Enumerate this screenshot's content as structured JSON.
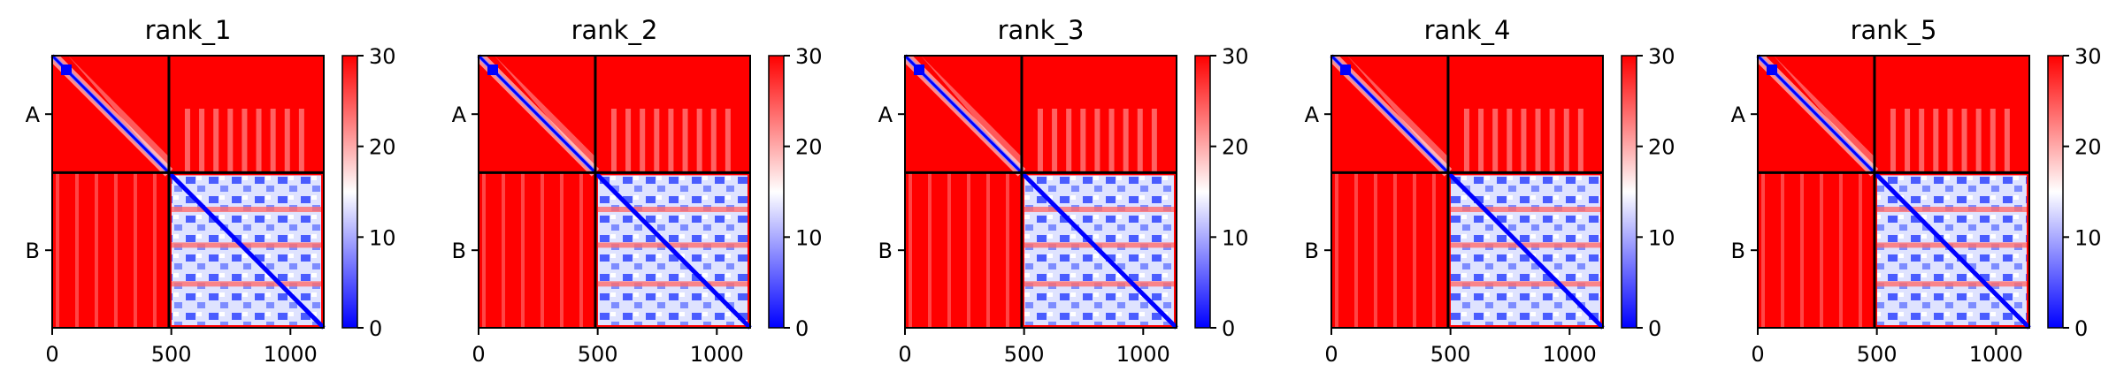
{
  "chart_data": [
    {
      "type": "heatmap",
      "title": "rank_1",
      "x_ticks": [
        0,
        500,
        1000
      ],
      "xlim": [
        0,
        1140
      ],
      "y_tick_labels": [
        "A",
        "B"
      ],
      "chain_boundary": 490,
      "colorbar": {
        "min": 0,
        "max": 30,
        "ticks": [
          0,
          10,
          20,
          30
        ],
        "colormap": "bwr"
      }
    },
    {
      "type": "heatmap",
      "title": "rank_2",
      "x_ticks": [
        0,
        500,
        1000
      ],
      "xlim": [
        0,
        1140
      ],
      "y_tick_labels": [
        "A",
        "B"
      ],
      "chain_boundary": 490,
      "colorbar": {
        "min": 0,
        "max": 30,
        "ticks": [
          0,
          10,
          20,
          30
        ],
        "colormap": "bwr"
      }
    },
    {
      "type": "heatmap",
      "title": "rank_3",
      "x_ticks": [
        0,
        500,
        1000
      ],
      "xlim": [
        0,
        1140
      ],
      "y_tick_labels": [
        "A",
        "B"
      ],
      "chain_boundary": 490,
      "colorbar": {
        "min": 0,
        "max": 30,
        "ticks": [
          0,
          10,
          20,
          30
        ],
        "colormap": "bwr"
      }
    },
    {
      "type": "heatmap",
      "title": "rank_4",
      "x_ticks": [
        0,
        500,
        1000
      ],
      "xlim": [
        0,
        1140
      ],
      "y_tick_labels": [
        "A",
        "B"
      ],
      "chain_boundary": 490,
      "colorbar": {
        "min": 0,
        "max": 30,
        "ticks": [
          0,
          10,
          20,
          30
        ],
        "colormap": "bwr"
      }
    },
    {
      "type": "heatmap",
      "title": "rank_5",
      "x_ticks": [
        0,
        500,
        1000
      ],
      "xlim": [
        0,
        1140
      ],
      "y_tick_labels": [
        "A",
        "B"
      ],
      "chain_boundary": 490,
      "colorbar": {
        "min": 0,
        "max": 30,
        "ticks": [
          0,
          10,
          20,
          30
        ],
        "colormap": "bwr"
      }
    }
  ],
  "colors": {
    "high": "#ff0000",
    "mid": "#ffffff",
    "low": "#0000ff",
    "axis": "#000000"
  }
}
